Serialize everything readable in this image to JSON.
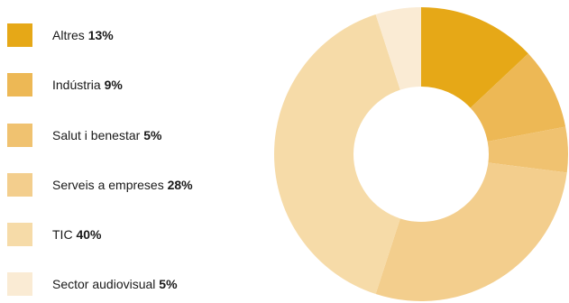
{
  "chart_data": {
    "type": "donut",
    "title": "",
    "series": [
      {
        "label": "Altres",
        "value": 13,
        "value_label": "13%",
        "color": "#E6A817"
      },
      {
        "label": "Indústria",
        "value": 9,
        "value_label": "9%",
        "color": "#EDB855"
      },
      {
        "label": "Salut i benestar",
        "value": 5,
        "value_label": "5%",
        "color": "#F0C270"
      },
      {
        "label": "Serveis a empreses",
        "value": 28,
        "value_label": "28%",
        "color": "#F3CE8D"
      },
      {
        "label": "TIC",
        "value": 40,
        "value_label": "40%",
        "color": "#F6DBA8"
      },
      {
        "label": "Sector audiovisual",
        "value": 5,
        "value_label": "5%",
        "color": "#FAEBD4"
      }
    ],
    "legend_position": "left"
  }
}
